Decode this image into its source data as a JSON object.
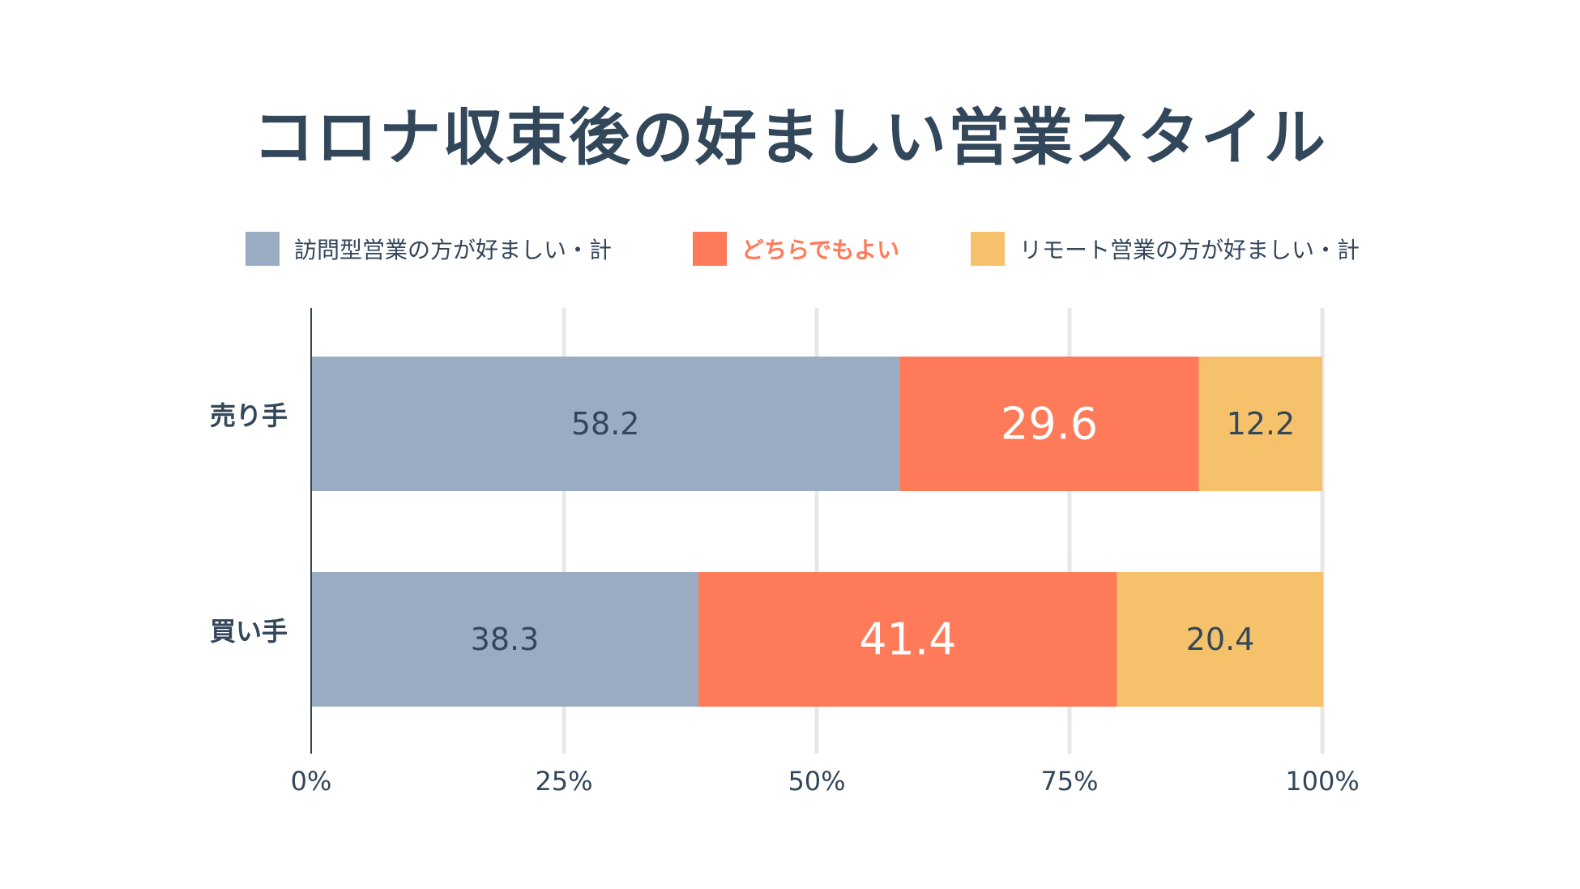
{
  "title": "コロナ収束後の好ましい営業スタイル",
  "colors": {
    "visit": "#99acc2",
    "either": "#ff7a59",
    "remote": "#f5c26b",
    "text": "#33475b",
    "grid": "#e5e8eb"
  },
  "legend": [
    {
      "label": "訪問型営業の方が好ましい・計",
      "color": "#99acc2",
      "label_color": "#33475b"
    },
    {
      "label": "どちらでもよい",
      "color": "#ff7a59",
      "label_color": "#ff7a59"
    },
    {
      "label": "リモート営業の方が好ましい・計",
      "color": "#f5c26b",
      "label_color": "#33475b"
    }
  ],
  "chart_data": {
    "type": "bar",
    "orientation": "horizontal",
    "stacked": true,
    "title": "コロナ収束後の好ましい営業スタイル",
    "categories": [
      "売り手",
      "買い手"
    ],
    "series": [
      {
        "name": "訪問型営業の方が好ましい・計",
        "values": [
          58.2,
          38.3
        ],
        "color": "#99acc2",
        "label_color": "#33475b",
        "label_style": "normal"
      },
      {
        "name": "どちらでもよい",
        "values": [
          29.6,
          41.4
        ],
        "color": "#ff7a59",
        "label_color": "#ffffff",
        "label_style": "large"
      },
      {
        "name": "リモート営業の方が好ましい・計",
        "values": [
          12.2,
          20.4
        ],
        "color": "#f5c26b",
        "label_color": "#33475b",
        "label_style": "normal"
      }
    ],
    "xlim": [
      0,
      100
    ],
    "xticks": [
      0,
      25,
      50,
      75,
      100
    ],
    "xtick_labels": [
      "0%",
      "25%",
      "50%",
      "75%",
      "100%"
    ],
    "grid": true,
    "legend_position": "top"
  }
}
